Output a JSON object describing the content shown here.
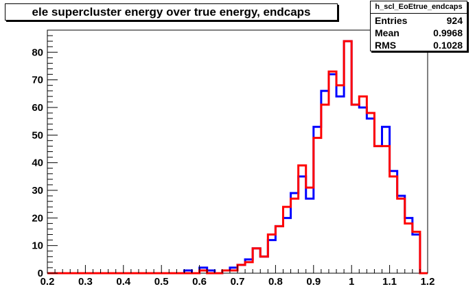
{
  "title": "ele supercluster energy over true energy, endcaps",
  "stats": {
    "name": "h_scl_EoEtrue_endcaps",
    "rows": [
      {
        "label": "Entries",
        "value": "924"
      },
      {
        "label": "Mean",
        "value": "0.9968"
      },
      {
        "label": "RMS",
        "value": "0.1028"
      }
    ]
  },
  "chart_data": {
    "type": "histogram",
    "xlim": [
      0.2,
      1.2
    ],
    "ylim": [
      0,
      88
    ],
    "x_ticks": [
      "0.2",
      "0.3",
      "0.4",
      "0.5",
      "0.6",
      "0.7",
      "0.8",
      "0.9",
      "1",
      "1.1",
      "1.2"
    ],
    "y_ticks": [
      "0",
      "10",
      "20",
      "30",
      "40",
      "50",
      "60",
      "70",
      "80"
    ],
    "bin_width": 0.02,
    "bin_start": 0.2,
    "colors": {
      "blue": "#0000ff",
      "red": "#ff0000"
    },
    "series": [
      {
        "color": "#0000ff",
        "values": [
          0,
          0,
          0,
          0,
          0,
          0,
          0,
          0,
          0,
          0,
          0,
          0,
          0,
          0,
          0,
          0,
          0,
          0,
          1,
          0,
          2,
          1,
          0,
          1,
          2,
          3,
          5,
          9,
          6,
          12,
          17,
          20,
          29,
          35,
          27,
          53,
          66,
          72,
          64,
          84,
          61,
          60,
          56,
          46,
          53,
          37,
          28,
          20,
          14,
          0
        ]
      },
      {
        "color": "#ff0000",
        "values": [
          0,
          0,
          0,
          0,
          0,
          0,
          0,
          0,
          0,
          0,
          0,
          0,
          0,
          0,
          0,
          0,
          0,
          0,
          0,
          0,
          1,
          0,
          0,
          1,
          1,
          3,
          4,
          9,
          6,
          14,
          17,
          24,
          27,
          39,
          31,
          49,
          61,
          73,
          68,
          84,
          61,
          64,
          58,
          46,
          46,
          35,
          27,
          18,
          15,
          0
        ]
      }
    ]
  }
}
